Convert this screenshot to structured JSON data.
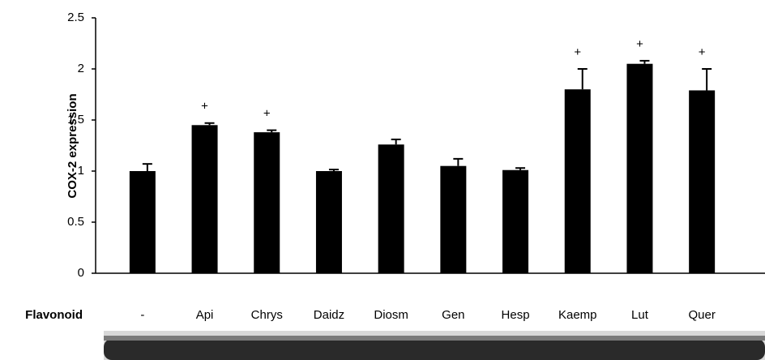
{
  "chart_data": {
    "type": "bar",
    "y_label": "COX-2 expression",
    "row_label": "Flavonoid",
    "categories": [
      "-",
      "Api",
      "Chrys",
      "Daidz",
      "Diosm",
      "Gen",
      "Hesp",
      "Kaemp",
      "Lut",
      "Quer"
    ],
    "values": [
      1.0,
      1.45,
      1.38,
      1.0,
      1.26,
      1.05,
      1.01,
      1.8,
      2.05,
      1.79
    ],
    "errors": [
      0.07,
      0.02,
      0.02,
      0.015,
      0.05,
      0.07,
      0.02,
      0.2,
      0.03,
      0.21
    ],
    "markers": [
      null,
      "+",
      "+",
      null,
      null,
      null,
      null,
      "+",
      "+",
      "+"
    ],
    "color": "#000000",
    "ylim": [
      0,
      2.5
    ],
    "yticks": [
      0,
      0.5,
      1,
      1.5,
      2,
      2.5
    ],
    "grid": false
  }
}
